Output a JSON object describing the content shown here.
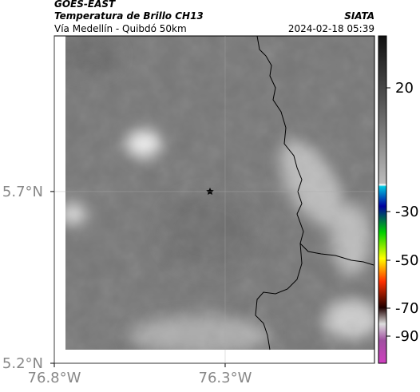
{
  "header": {
    "title": "GOES-EAST",
    "subtitle": "Temperatura de Brillo CH13",
    "route": "Vía Medellín - Quibdó 50km",
    "source": "SIATA",
    "timestamp": "2024-02-18 05:39"
  },
  "map": {
    "xlim": [
      -76.8,
      -75.863
    ],
    "ylim": [
      5.2,
      6.153
    ],
    "xticks": [
      {
        "value": -76.8,
        "label": "76.8°W"
      },
      {
        "value": -76.3,
        "label": "76.3°W"
      }
    ],
    "yticks": [
      {
        "value": 5.7,
        "label": "5.7°N"
      },
      {
        "value": 5.2,
        "label": "5.2°N"
      }
    ],
    "grid": true
  },
  "colorbar": {
    "ticks": [
      20,
      -30,
      -50,
      -70,
      -90
    ]
  }
}
